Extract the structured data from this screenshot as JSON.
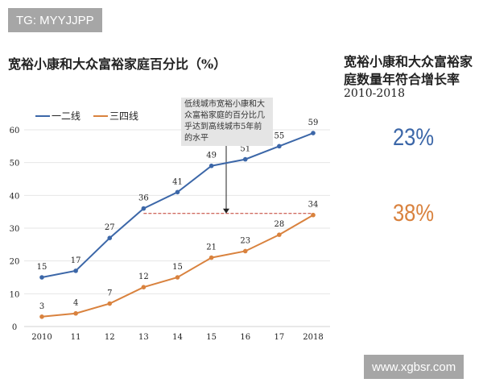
{
  "watermark_top": "TG: MYYJJPP",
  "watermark_bottom": "www.xgbsr.com",
  "right_panel": {
    "title": "宽裕小康和大众富裕家庭数量年符合增长率",
    "period": "2010-2018",
    "rates": [
      {
        "series": "一二线",
        "value": "23%"
      },
      {
        "series": "三四线",
        "value": "38%"
      }
    ]
  },
  "chart_data": {
    "type": "line",
    "title": "宽裕小康和大众富裕家庭百分比（%）",
    "categories": [
      "2010",
      "11",
      "12",
      "13",
      "14",
      "15",
      "16",
      "17",
      "2018"
    ],
    "series": [
      {
        "name": "一二线",
        "color": "#3c67a8",
        "values": [
          15,
          17,
          27,
          36,
          41,
          49,
          51,
          55,
          59
        ]
      },
      {
        "name": "三四线",
        "color": "#d9823e",
        "values": [
          3,
          4,
          7,
          12,
          15,
          21,
          23,
          28,
          34
        ]
      }
    ],
    "ylim": [
      0,
      60
    ],
    "yticks": [
      0,
      10,
      20,
      30,
      40,
      50,
      60
    ],
    "grid": true,
    "legend": "top-left",
    "annotation": {
      "text": "低线城市宽裕小康和大众富裕家庭的百分比几乎达到高线城市5年前的水平",
      "reference_value": 34.5,
      "reference_color": "#c0392b"
    }
  }
}
